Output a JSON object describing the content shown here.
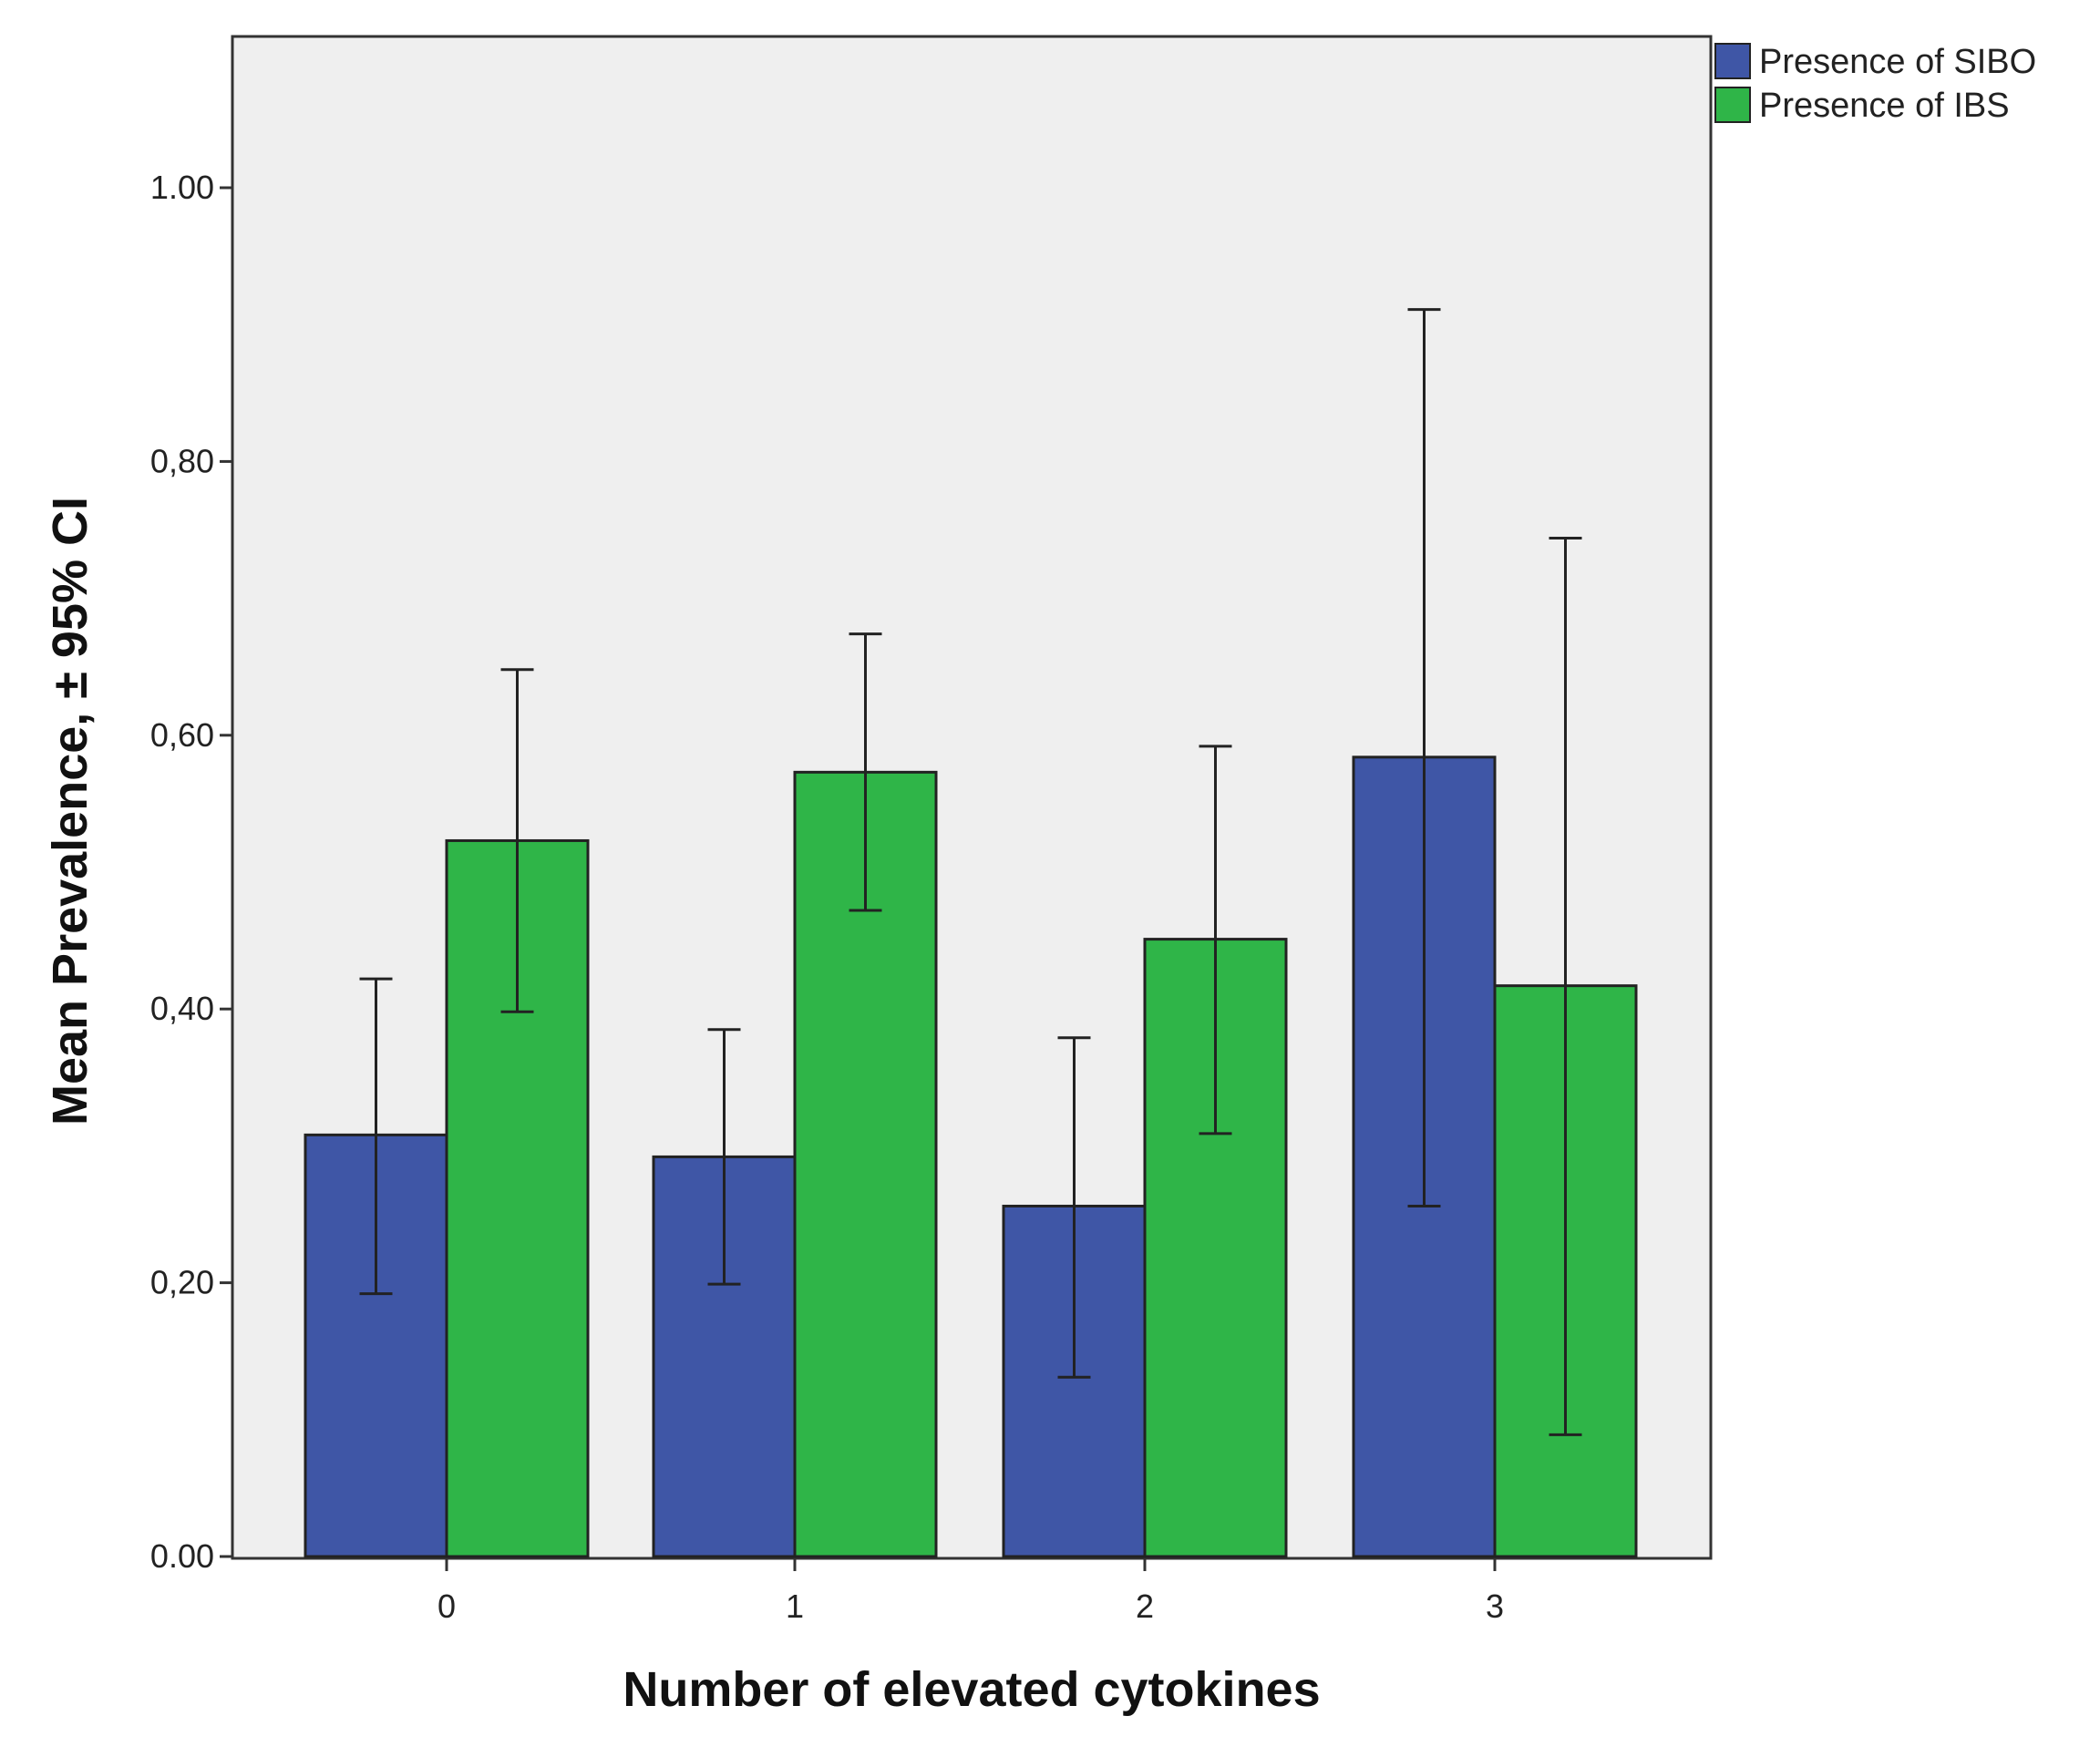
{
  "chart_data": {
    "type": "bar",
    "title": "",
    "xlabel": "Number of elevated cytokines",
    "ylabel": "Mean Prevalence, ± 95% CI",
    "categories": [
      "0",
      "1",
      "2",
      "3"
    ],
    "ylim": [
      0,
      1.1
    ],
    "yticks": [
      0.0,
      0.2,
      0.4,
      0.6,
      0.8,
      1.0
    ],
    "ytick_labels": [
      "0.00",
      "0,20",
      "0,40",
      "0,60",
      "0,80",
      "1.00"
    ],
    "grid": false,
    "legend_position": "top-right, outside plot",
    "series": [
      {
        "name": "Presence of SIBO",
        "color": "#3f56a6",
        "values": [
          0.308,
          0.292,
          0.256,
          0.584
        ],
        "ci_low": [
          0.192,
          0.199,
          0.131,
          0.256
        ],
        "ci_high": [
          0.422,
          0.385,
          0.379,
          0.911
        ]
      },
      {
        "name": "Presence of IBS",
        "color": "#2fb548",
        "values": [
          0.523,
          0.573,
          0.451,
          0.417
        ],
        "ci_low": [
          0.398,
          0.472,
          0.309,
          0.089
        ],
        "ci_high": [
          0.648,
          0.674,
          0.592,
          0.744
        ]
      }
    ]
  },
  "style": {
    "plot_background": "#efefef",
    "frame_color": "#333333"
  }
}
